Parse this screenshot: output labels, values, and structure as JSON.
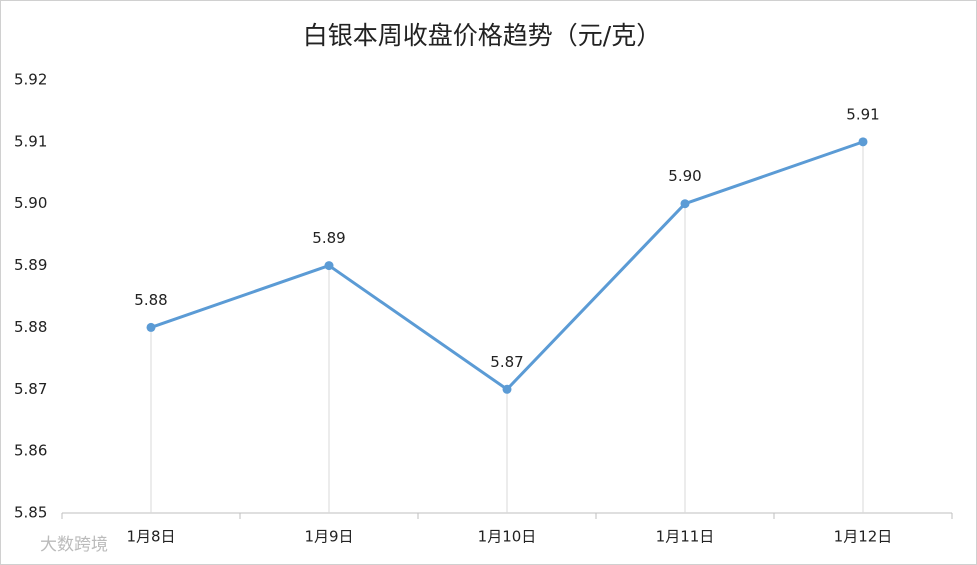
{
  "chart_data": {
    "type": "line",
    "title": "白银本周收盘价格趋势（元/克）",
    "categories": [
      "1月8日",
      "1月9日",
      "1月10日",
      "1月11日",
      "1月12日"
    ],
    "values": [
      5.88,
      5.89,
      5.87,
      5.9,
      5.91
    ],
    "value_labels": [
      "5.88",
      "5.89",
      "5.87",
      "5.90",
      "5.91"
    ],
    "color": "#5b9bd5",
    "ylim": [
      5.85,
      5.92
    ],
    "yticks": [
      5.85,
      5.86,
      5.87,
      5.88,
      5.89,
      {
        "value": 5.9,
        "label": "5.90"
      },
      5.91,
      5.92
    ],
    "drop_lines": true,
    "watermark": "大数跨境"
  }
}
